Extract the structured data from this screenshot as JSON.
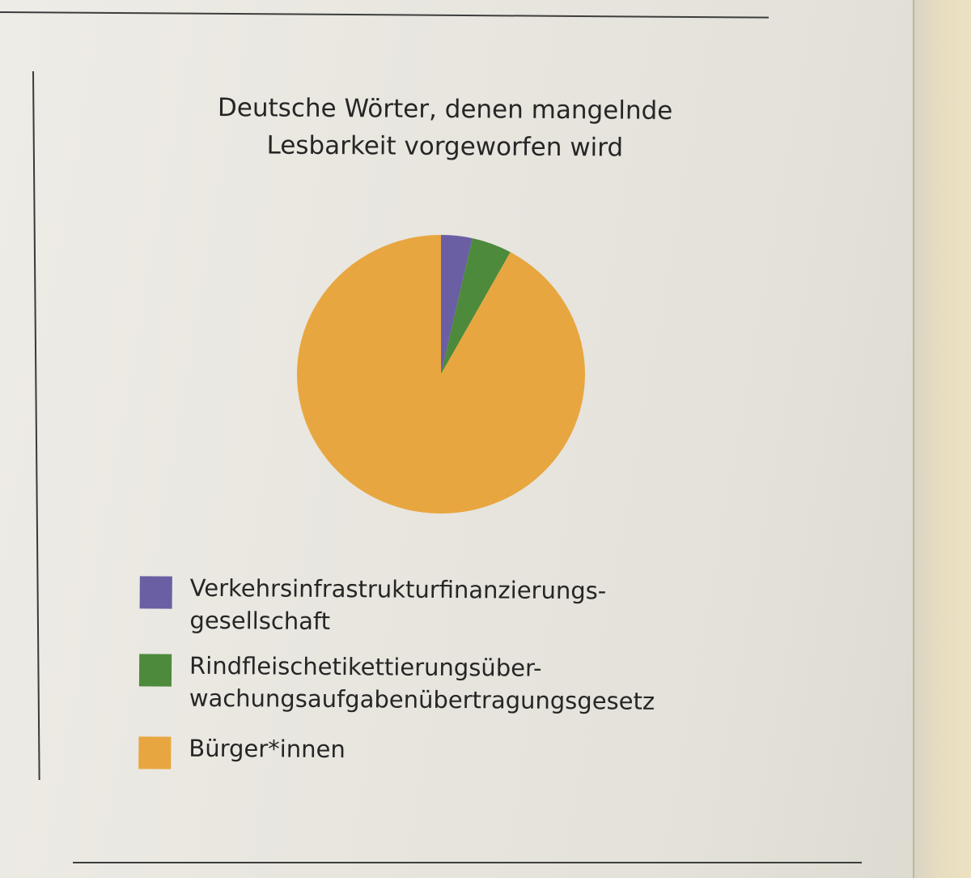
{
  "chart_data": {
    "type": "pie",
    "title": "Deutsche Wörter, denen mangelnde Lesbarkeit vorgeworfen wird",
    "title_lines": [
      "Deutsche Wörter, denen mangelnde",
      "Lesbarkeit vorgeworfen wird"
    ],
    "legend_position": "bottom",
    "slices": [
      {
        "label": "Verkehrsinfrastrukturfinanzierungsgesellschaft",
        "label_lines": [
          "Verkehrsinfrastrukturfinanzierungs-",
          "gesellschaft"
        ],
        "value": 3.5,
        "color": "#6a5fa3"
      },
      {
        "label": "Rindfleischetikettierungsüberwachungsaufgabenübertragungsgesetz",
        "label_lines": [
          "Rindfleischetikettierungsüber-",
          "wachungsaufgabenübertragungsgesetz"
        ],
        "value": 4.5,
        "color": "#4d8a3c"
      },
      {
        "label": "Bürger*innen",
        "label_lines": [
          "Bürger*innen"
        ],
        "value": 92,
        "color": "#e8a640"
      }
    ]
  }
}
